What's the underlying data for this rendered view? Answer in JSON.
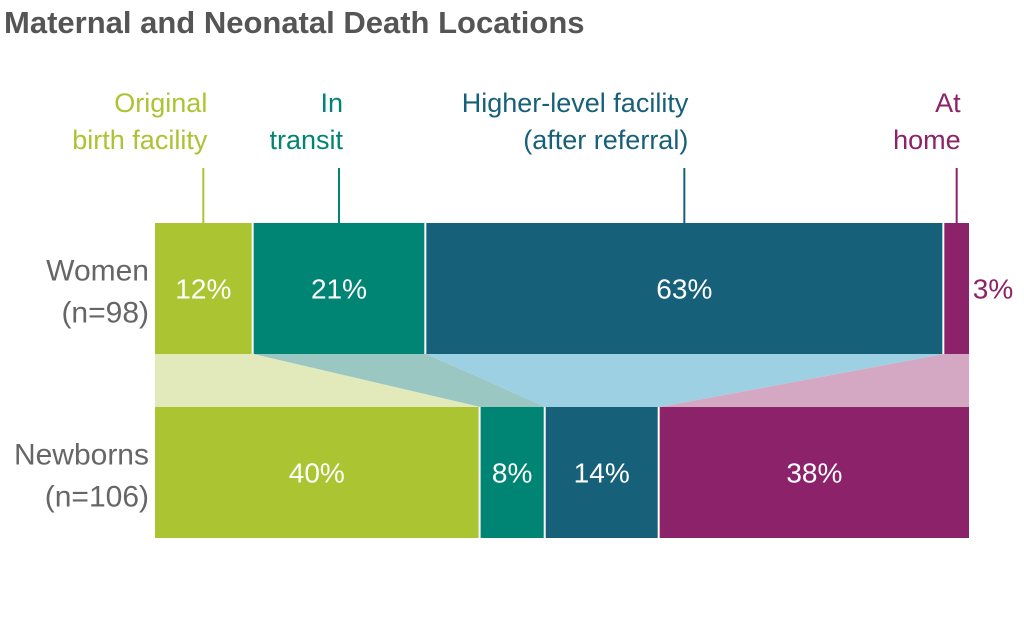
{
  "chart_data": {
    "type": "bar",
    "title": "Maternal and Neonatal Death Locations",
    "categories": [
      {
        "label_lines": [
          "Original",
          "birth facility"
        ],
        "color": "#abc432",
        "light_color": "#e2eabb"
      },
      {
        "label_lines": [
          "In",
          "transit"
        ],
        "color": "#008575",
        "light_color": "#9ac7c2"
      },
      {
        "label_lines": [
          "Higher-level facility",
          "(after referral)"
        ],
        "color": "#17607a",
        "light_color": "#9cd0e2"
      },
      {
        "label_lines": [
          "At",
          "home"
        ],
        "color": "#8b226a",
        "light_color": "#d4a8c3"
      }
    ],
    "series": [
      {
        "name": "Women",
        "sublabel": "(n=98)",
        "values": [
          12,
          21,
          63,
          3
        ],
        "labels": [
          "12%",
          "21%",
          "63%",
          "3%"
        ]
      },
      {
        "name": "Newborns",
        "sublabel": "(n=106)",
        "values": [
          40,
          8,
          14,
          38
        ],
        "labels": [
          "40%",
          "8%",
          "14%",
          "38%"
        ]
      }
    ]
  }
}
